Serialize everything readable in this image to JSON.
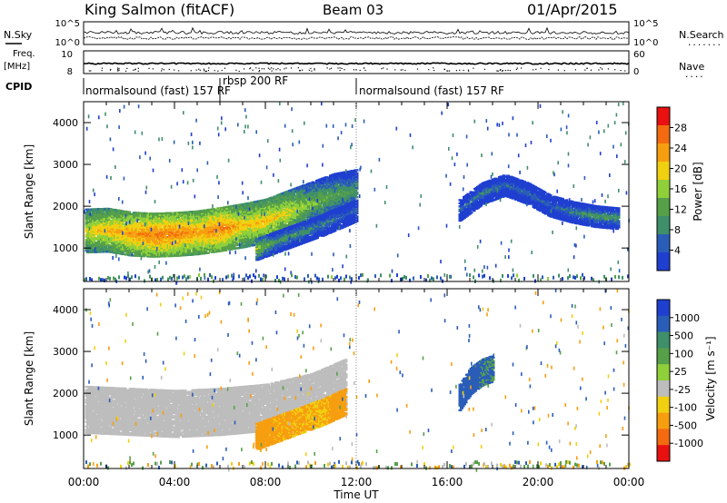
{
  "header": {
    "station": "King Salmon (fitACF)",
    "beam": "Beam 03",
    "date": "01/Apr/2015"
  },
  "left_labels": {
    "nsky": "N.Sky",
    "freq_line1": "Freq.",
    "freq_line2": "[MHz]",
    "cpid": "CPID"
  },
  "right_labels": {
    "nsearch": "N.Search",
    "nave": "Nave"
  },
  "cpid_segments": [
    {
      "label": "normalsound (fast) 157 RF"
    },
    {
      "label": "rbsp 200 RF"
    },
    {
      "label": "normalsound (fast) 157 RF"
    }
  ],
  "axis_labels": {
    "x": "Time UT",
    "y_power": "Slant Range [km]",
    "y_velocity": "Slant Range [km]",
    "power_cbar": "Power [dB]",
    "velocity_cbar": "Velocity [m s⁻¹]"
  },
  "colors": {
    "power": [
      "#1f3fd0",
      "#2a5db8",
      "#3f8f6a",
      "#56a04a",
      "#8fd03a",
      "#f0d010",
      "#f79e10",
      "#f36a10",
      "#e81010"
    ],
    "velocity": [
      "#1f3fd0",
      "#2a5db8",
      "#3f8f6a",
      "#56a04a",
      "#8fd03a",
      "#bdbdbd",
      "#f0d010",
      "#f79e10",
      "#f36a10",
      "#e81010"
    ],
    "ground_scatter": "#bdbdbd"
  },
  "chart_data": [
    {
      "name": "panel-top-noise",
      "type": "line",
      "y_left_ticks": [
        "10^5",
        "10^0"
      ],
      "y_right_ticks": [
        "10^5",
        "10^0"
      ]
    },
    {
      "name": "panel-freq-nave",
      "type": "scatter",
      "y_left_ticks": [
        "10",
        "8"
      ],
      "y_right_ticks": [
        "60",
        "0"
      ]
    },
    {
      "name": "panel-power",
      "type": "heatmap",
      "x_range_hours": [
        0,
        24
      ],
      "x_ticks": [
        "00:00",
        "04:00",
        "08:00",
        "12:00",
        "16:00",
        "20:00",
        "00:00"
      ],
      "y_range_km": [
        200,
        4500
      ],
      "y_ticks": [
        "1000",
        "2000",
        "3000",
        "4000"
      ],
      "colorbar_ticks": [
        "28",
        "24",
        "20",
        "16",
        "12",
        "8",
        "4"
      ],
      "colorbar_range": [
        0,
        30
      ],
      "features": [
        {
          "desc": "main band",
          "t": [
            0.0,
            1.0,
            2.0,
            3.0,
            4.0,
            5.0,
            6.0,
            7.0,
            8.0,
            9.0,
            10.0,
            11.0,
            12.0
          ],
          "range_km": [
            1400,
            1420,
            1330,
            1300,
            1320,
            1360,
            1440,
            1530,
            1640,
            1850,
            2050,
            2250,
            2350
          ],
          "power_db": [
            18,
            20,
            22,
            24,
            24,
            22,
            24,
            20,
            20,
            18,
            14,
            12,
            10
          ]
        },
        {
          "desc": "lower band",
          "t": [
            7.5,
            8.5,
            9.5,
            10.5,
            11.5,
            12.0
          ],
          "range_km": [
            950,
            1150,
            1350,
            1550,
            1780,
            1900
          ],
          "power_db": [
            16,
            10,
            10,
            8,
            6,
            6
          ]
        },
        {
          "desc": "afternoon patch",
          "t": [
            16.5,
            17.5,
            18.5,
            19.5,
            20.5,
            21.5,
            22.5,
            23.5
          ],
          "range_km": [
            1900,
            2300,
            2500,
            2300,
            2000,
            1850,
            1750,
            1700
          ],
          "power_db": [
            6,
            8,
            6,
            6,
            6,
            8,
            10,
            10
          ]
        }
      ]
    },
    {
      "name": "panel-velocity",
      "type": "heatmap",
      "x_range_hours": [
        0,
        24
      ],
      "x_ticks": [
        "00:00",
        "04:00",
        "08:00",
        "12:00",
        "16:00",
        "20:00",
        "00:00"
      ],
      "y_range_km": [
        200,
        4500
      ],
      "y_ticks": [
        "1000",
        "2000",
        "3000",
        "4000"
      ],
      "colorbar_ticks": [
        "1000",
        "500",
        "100",
        "25",
        "-25",
        "-100",
        "-500",
        "-1000"
      ],
      "features": [
        {
          "desc": "ground scatter band",
          "t": [
            0.0,
            2.0,
            4.0,
            6.0,
            8.0,
            10.0,
            11.5
          ],
          "range_km": [
            1600,
            1550,
            1500,
            1550,
            1650,
            1900,
            2250
          ],
          "velocity": [
            0,
            0,
            0,
            0,
            0,
            0,
            0
          ]
        },
        {
          "desc": "negative velocity band",
          "t": [
            7.5,
            8.5,
            9.5,
            10.5,
            11.5
          ],
          "range_km": [
            950,
            1150,
            1350,
            1550,
            1800
          ],
          "velocity": [
            -200,
            -150,
            -120,
            -100,
            -300
          ]
        },
        {
          "desc": "positive velocity patch",
          "t": [
            16.5,
            17.0,
            17.5,
            18.0
          ],
          "range_km": [
            1900,
            2300,
            2500,
            2600
          ],
          "velocity": [
            300,
            200,
            150,
            100
          ]
        }
      ]
    }
  ]
}
